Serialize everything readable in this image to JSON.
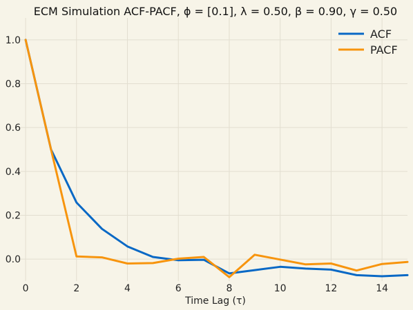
{
  "chart_data": {
    "type": "line",
    "title": "ECM Simulation ACF-PACF, ϕ = [0.1], λ = 0.50, β = 0.90, γ = 0.50",
    "xlabel": "Time Lag (τ)",
    "ylabel": "",
    "xlim": [
      -0.3,
      15
    ],
    "ylim": [
      -0.1,
      1.1
    ],
    "xticks": [
      0,
      2,
      4,
      6,
      8,
      10,
      12,
      14
    ],
    "yticks": [
      0.0,
      0.2,
      0.4,
      0.6,
      0.8,
      1.0
    ],
    "xtick_labels": [
      "0",
      "2",
      "4",
      "6",
      "8",
      "10",
      "12",
      "14"
    ],
    "ytick_labels": [
      "0.0",
      "0.2",
      "0.4",
      "0.6",
      "0.8",
      "1.0"
    ],
    "grid": true,
    "legend_position": "top-right",
    "x": [
      0,
      1,
      2,
      3,
      4,
      5,
      6,
      7,
      8,
      9,
      10,
      11,
      12,
      13,
      14,
      15
    ],
    "series": [
      {
        "name": "ACF",
        "color": "#0868c5",
        "values": [
          1.0,
          0.5,
          0.258,
          0.138,
          0.058,
          0.01,
          -0.005,
          -0.003,
          -0.065,
          -0.05,
          -0.035,
          -0.043,
          -0.048,
          -0.073,
          -0.078,
          -0.073
        ]
      },
      {
        "name": "PACF",
        "color": "#f7940d",
        "values": [
          1.0,
          0.5,
          0.012,
          0.008,
          -0.02,
          -0.018,
          0.002,
          0.01,
          -0.082,
          0.02,
          -0.002,
          -0.024,
          -0.02,
          -0.052,
          -0.022,
          -0.013
        ]
      }
    ]
  }
}
